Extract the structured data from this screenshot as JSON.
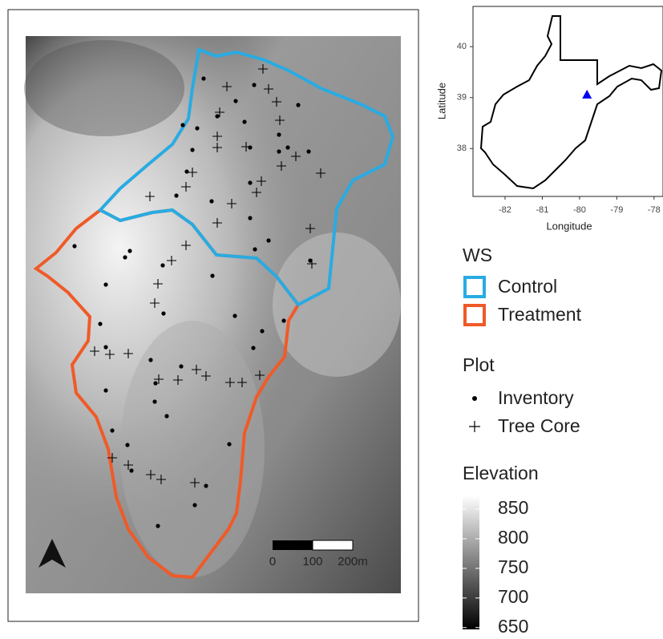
{
  "map": {
    "scale_bar": {
      "labels": [
        "0",
        "100",
        "200m"
      ]
    },
    "inset": {
      "x_label": "Longitude",
      "y_label": "Latitude",
      "xlim": [
        -82.86,
        -77.76
      ],
      "ylim": [
        37.06,
        40.79
      ],
      "xticks": [
        -82,
        -81,
        -80,
        -79,
        -78
      ],
      "yticks": [
        38,
        39,
        40
      ],
      "site": {
        "lon": -79.8,
        "lat": 39.06,
        "color": "#0000ee"
      }
    },
    "legend": {
      "ws_title": "WS",
      "ws": [
        {
          "name": "Control",
          "color": "#29abe2"
        },
        {
          "name": "Treatment",
          "color": "#f05a28"
        }
      ],
      "plot_title": "Plot",
      "plot": [
        {
          "name": "Inventory"
        },
        {
          "name": "Tree Core"
        }
      ],
      "elevation_title": "Elevation",
      "elevation_lim": [
        647,
        873
      ],
      "elevation_ticks": [
        850,
        800,
        750,
        700,
        650
      ]
    }
  }
}
